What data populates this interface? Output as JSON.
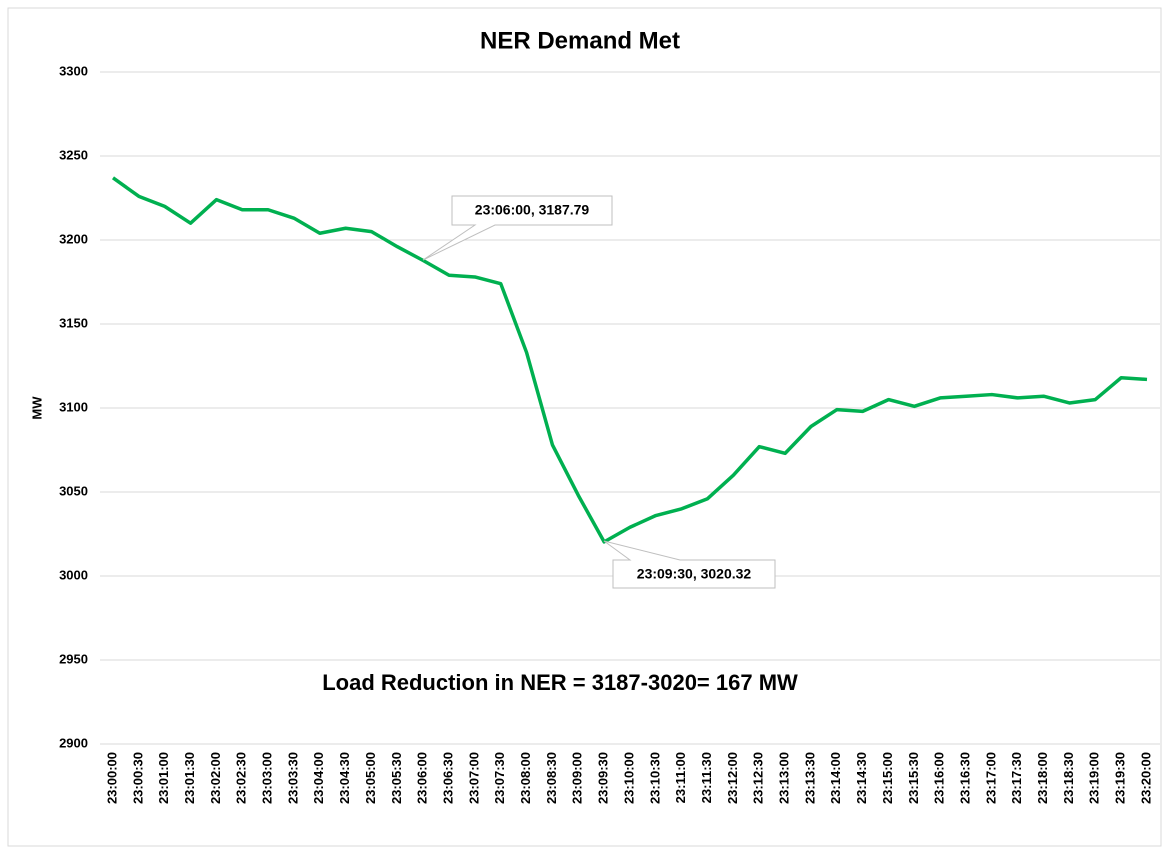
{
  "chart_data": {
    "type": "line",
    "title": "NER Demand Met",
    "y_label": "MW",
    "categories": [
      "23:00:00",
      "23:00:30",
      "23:01:00",
      "23:01:30",
      "23:02:00",
      "23:02:30",
      "23:03:00",
      "23:03:30",
      "23:04:00",
      "23:04:30",
      "23:05:00",
      "23:05:30",
      "23:06:00",
      "23:06:30",
      "23:07:00",
      "23:07:30",
      "23:08:00",
      "23:08:30",
      "23:09:00",
      "23:09:30",
      "23:10:00",
      "23:10:30",
      "23:11:00",
      "23:11:30",
      "23:12:00",
      "23:12:30",
      "23:13:00",
      "23:13:30",
      "23:14:00",
      "23:14:30",
      "23:15:00",
      "23:15:30",
      "23:16:00",
      "23:16:30",
      "23:17:00",
      "23:17:30",
      "23:18:00",
      "23:18:30",
      "23:19:00",
      "23:19:30",
      "23:20:00"
    ],
    "series": [
      {
        "name": "NER Demand Met",
        "color": "#00b050",
        "values": [
          3237,
          3226,
          3220,
          3210,
          3224,
          3218,
          3218,
          3213,
          3204,
          3207,
          3205,
          3196,
          3187.79,
          3179,
          3178,
          3174,
          3133,
          3078,
          3048,
          3020.32,
          3029,
          3036,
          3040,
          3046,
          3060,
          3077,
          3073,
          3089,
          3099,
          3098,
          3105,
          3101,
          3106,
          3107,
          3108,
          3106,
          3107,
          3103,
          3105,
          3118,
          3117
        ]
      }
    ],
    "ylim": [
      2900,
      3300
    ],
    "yticks": [
      2900,
      2950,
      3000,
      3050,
      3100,
      3150,
      3200,
      3250,
      3300
    ],
    "grid": true,
    "annotations": [
      "23:06:00, 3187.79",
      "23:09:30, 3020.32",
      "Load Reduction in NER = 3187-3020= 167  MW"
    ]
  }
}
